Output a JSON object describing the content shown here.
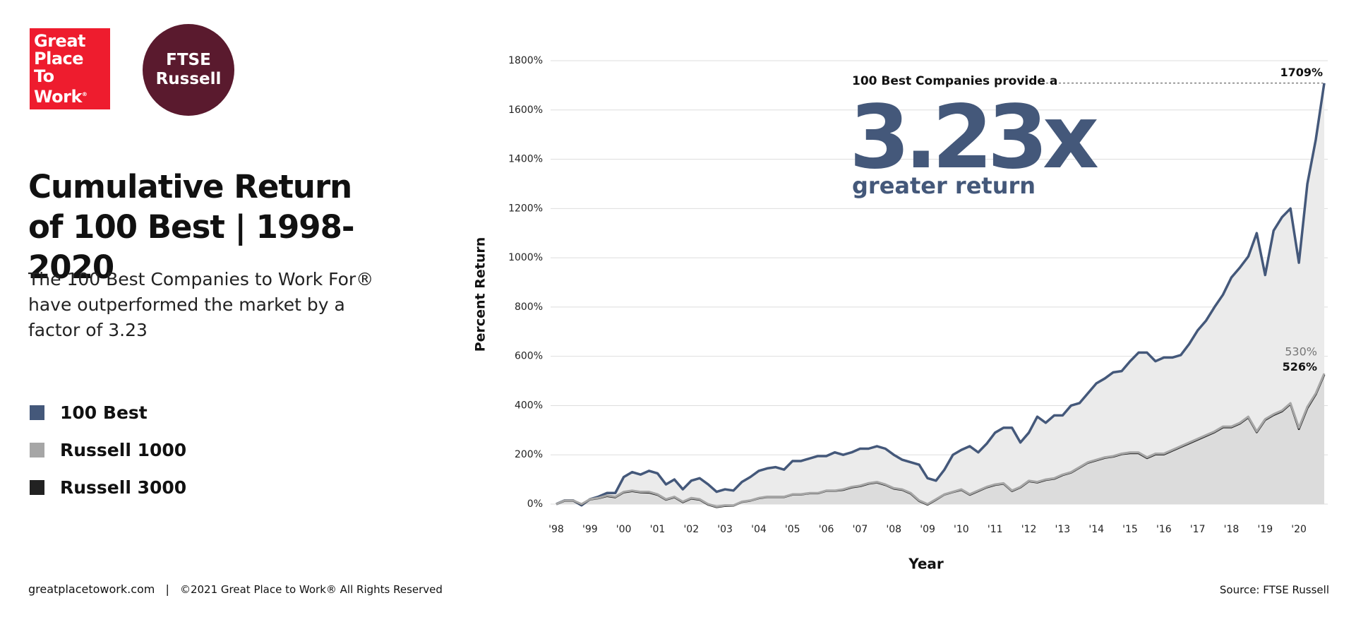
{
  "logos": {
    "gptw": [
      "Great",
      "Place",
      "To",
      "Work"
    ],
    "gptw_mark": "®",
    "ftse": [
      "FTSE",
      "Russell"
    ]
  },
  "title": "Cumulative Return of 100 Best | 1998-2020",
  "description": "The 100 Best Companies to Work For® have outperformed the market by a factor of 3.23",
  "footer": {
    "site": "greatplacetowork.com",
    "separator": "|",
    "copyright": "©2021 Great Place to Work® All Rights Reserved",
    "source": "Source: FTSE Russell"
  },
  "chart_data": {
    "type": "line",
    "area": true,
    "grid": true,
    "x_label": "Year",
    "y_label": "Percent Return",
    "annotation": {
      "lead": "100 Best Companies provide a",
      "headline": "3.23x",
      "sub": "greater return"
    },
    "categories": [
      "'98",
      null,
      null,
      null,
      "'99",
      null,
      null,
      null,
      "'00",
      null,
      null,
      null,
      "'01",
      null,
      null,
      null,
      "'02",
      null,
      null,
      null,
      "'03",
      null,
      null,
      null,
      "'04",
      null,
      null,
      null,
      "'05",
      null,
      null,
      null,
      "'06",
      null,
      null,
      null,
      "'07",
      null,
      null,
      null,
      "'08",
      null,
      null,
      null,
      "'09",
      null,
      null,
      null,
      "'10",
      null,
      null,
      null,
      "'11",
      null,
      null,
      null,
      "'12",
      null,
      null,
      null,
      "'13",
      null,
      null,
      null,
      "'14",
      null,
      null,
      null,
      "'15",
      null,
      null,
      null,
      "'16",
      null,
      null,
      null,
      "'17",
      null,
      null,
      null,
      "'18",
      null,
      null,
      null,
      "'19",
      null,
      null,
      null,
      "'20",
      null,
      null,
      null
    ],
    "ylim": [
      0,
      1800
    ],
    "yticks": [
      {
        "value": 0,
        "label": "0%"
      },
      {
        "value": 200,
        "label": "200%"
      },
      {
        "value": 400,
        "label": "400%"
      },
      {
        "value": 600,
        "label": "600%"
      },
      {
        "value": 800,
        "label": "800%"
      },
      {
        "value": 1000,
        "label": "1000%"
      },
      {
        "value": 1200,
        "label": "1200%"
      },
      {
        "value": 1400,
        "label": "1400%"
      },
      {
        "value": 1600,
        "label": "1600%"
      },
      {
        "value": 1800,
        "label": "1800%"
      }
    ],
    "series": [
      {
        "name": "100 Best",
        "color": "#44587a",
        "fill": "#ebebeb",
        "values": [
          0,
          15,
          15,
          -5,
          20,
          30,
          45,
          45,
          110,
          130,
          120,
          135,
          125,
          80,
          100,
          60,
          95,
          105,
          80,
          50,
          60,
          55,
          90,
          110,
          135,
          145,
          150,
          140,
          175,
          175,
          185,
          195,
          195,
          210,
          200,
          210,
          225,
          225,
          235,
          225,
          200,
          180,
          170,
          160,
          105,
          95,
          140,
          200,
          220,
          235,
          210,
          245,
          290,
          310,
          310,
          250,
          290,
          355,
          330,
          360,
          360,
          400,
          410,
          450,
          490,
          510,
          535,
          540,
          580,
          615,
          615,
          580,
          595,
          595,
          605,
          650,
          705,
          745,
          800,
          850,
          920,
          960,
          1005,
          1100,
          930,
          1110,
          1165,
          1200,
          980,
          1300,
          1480,
          1709
        ],
        "value_labels": [
          null,
          null,
          null,
          null,
          null,
          null,
          null,
          null,
          null,
          null,
          null,
          null,
          null,
          null,
          null,
          null,
          null,
          null,
          null,
          null,
          null,
          null,
          null,
          null,
          null,
          null,
          null,
          null,
          null,
          null,
          null,
          null,
          null,
          null,
          null,
          null,
          null,
          null,
          null,
          null,
          null,
          null,
          null,
          null,
          null,
          null,
          null,
          null,
          null,
          null,
          null,
          null,
          null,
          null,
          null,
          null,
          null,
          null,
          null,
          null,
          null,
          null,
          null,
          null,
          null,
          null,
          null,
          null,
          null,
          null,
          null,
          null,
          null,
          null,
          null,
          null,
          null,
          null,
          null,
          null,
          null,
          null,
          null,
          null,
          null,
          null,
          null,
          null,
          null,
          null,
          null,
          "1709%"
        ]
      },
      {
        "name": "Russell 1000",
        "color": "#a6a6a6",
        "fill": "#dcdcdc",
        "values": [
          0,
          15,
          15,
          0,
          20,
          25,
          35,
          30,
          50,
          55,
          50,
          50,
          40,
          20,
          30,
          10,
          25,
          20,
          0,
          -10,
          -5,
          -5,
          10,
          15,
          25,
          30,
          30,
          30,
          40,
          40,
          45,
          45,
          55,
          55,
          60,
          70,
          75,
          85,
          90,
          80,
          65,
          60,
          45,
          15,
          0,
          20,
          40,
          50,
          60,
          40,
          55,
          70,
          80,
          85,
          55,
          70,
          95,
          90,
          100,
          105,
          120,
          130,
          150,
          170,
          180,
          190,
          195,
          205,
          210,
          210,
          190,
          205,
          205,
          220,
          235,
          250,
          265,
          280,
          295,
          315,
          315,
          330,
          355,
          295,
          345,
          365,
          380,
          410,
          310,
          395,
          450,
          530
        ],
        "value_labels": [
          null,
          null,
          null,
          null,
          null,
          null,
          null,
          null,
          null,
          null,
          null,
          null,
          null,
          null,
          null,
          null,
          null,
          null,
          null,
          null,
          null,
          null,
          null,
          null,
          null,
          null,
          null,
          null,
          null,
          null,
          null,
          null,
          null,
          null,
          null,
          null,
          null,
          null,
          null,
          null,
          null,
          null,
          null,
          null,
          null,
          null,
          null,
          null,
          null,
          null,
          null,
          null,
          null,
          null,
          null,
          null,
          null,
          null,
          null,
          null,
          null,
          null,
          null,
          null,
          null,
          null,
          null,
          null,
          null,
          null,
          null,
          null,
          null,
          null,
          null,
          null,
          null,
          null,
          null,
          null,
          null,
          null,
          null,
          null,
          null,
          null,
          null,
          null,
          null,
          null,
          null,
          "530%"
        ]
      },
      {
        "name": "Russell 3000",
        "color": "#222222",
        "values": [
          0,
          14,
          14,
          -1,
          19,
          24,
          33,
          28,
          48,
          53,
          48,
          47,
          38,
          18,
          28,
          8,
          23,
          18,
          -2,
          -12,
          -7,
          -6,
          9,
          14,
          24,
          29,
          29,
          29,
          39,
          39,
          44,
          44,
          54,
          54,
          58,
          68,
          73,
          83,
          88,
          78,
          63,
          58,
          43,
          13,
          -2,
          18,
          39,
          49,
          58,
          38,
          53,
          68,
          78,
          83,
          53,
          68,
          93,
          88,
          98,
          103,
          118,
          128,
          148,
          168,
          178,
          188,
          193,
          203,
          207,
          207,
          187,
          202,
          202,
          217,
          232,
          247,
          262,
          277,
          292,
          312,
          312,
          327,
          352,
          292,
          342,
          362,
          377,
          407,
          305,
          390,
          446,
          526
        ],
        "value_labels": [
          null,
          null,
          null,
          null,
          null,
          null,
          null,
          null,
          null,
          null,
          null,
          null,
          null,
          null,
          null,
          null,
          null,
          null,
          null,
          null,
          null,
          null,
          null,
          null,
          null,
          null,
          null,
          null,
          null,
          null,
          null,
          null,
          null,
          null,
          null,
          null,
          null,
          null,
          null,
          null,
          null,
          null,
          null,
          null,
          null,
          null,
          null,
          null,
          null,
          null,
          null,
          null,
          null,
          null,
          null,
          null,
          null,
          null,
          null,
          null,
          null,
          null,
          null,
          null,
          null,
          null,
          null,
          null,
          null,
          null,
          null,
          null,
          null,
          null,
          null,
          null,
          null,
          null,
          null,
          null,
          null,
          null,
          null,
          null,
          null,
          null,
          null,
          null,
          null,
          null,
          null,
          "526%"
        ]
      }
    ]
  }
}
